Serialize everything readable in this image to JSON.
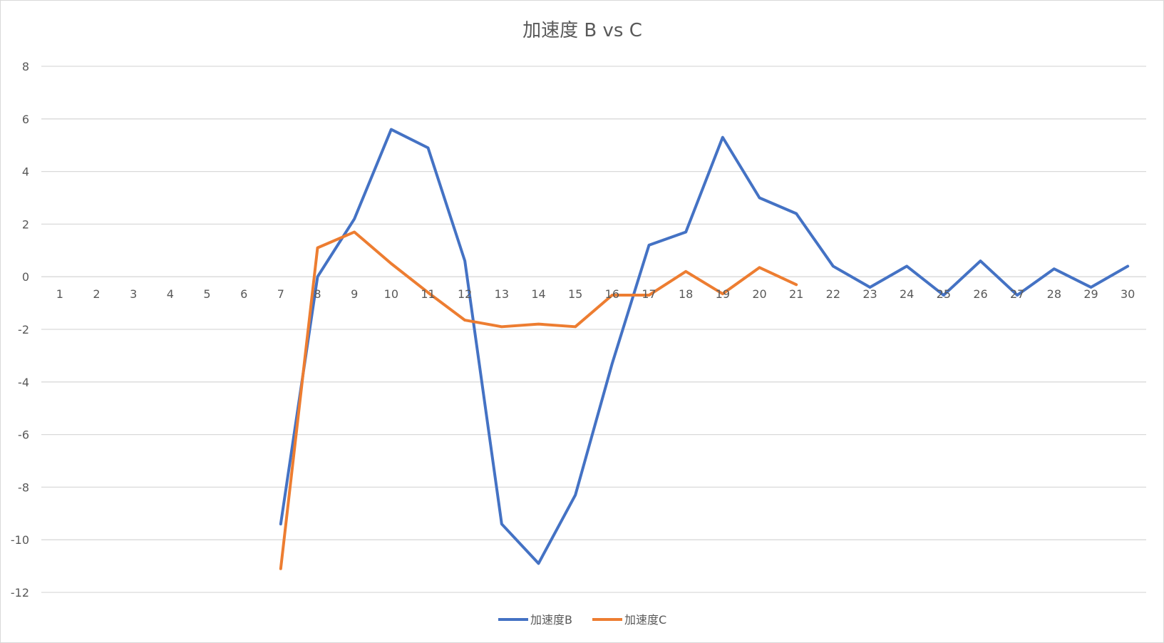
{
  "chart_data": {
    "type": "line",
    "title": "加速度 B vs C",
    "categories": [
      "1",
      "2",
      "3",
      "4",
      "5",
      "6",
      "7",
      "8",
      "9",
      "10",
      "11",
      "12",
      "13",
      "14",
      "15",
      "16",
      "17",
      "18",
      "19",
      "20",
      "21",
      "22",
      "23",
      "24",
      "25",
      "26",
      "27",
      "28",
      "29",
      "30"
    ],
    "series": [
      {
        "name": "加速度B",
        "color": "#4472C4",
        "values": [
          null,
          null,
          null,
          null,
          null,
          null,
          -9.4,
          0.0,
          2.2,
          5.6,
          4.9,
          0.6,
          -9.4,
          -10.9,
          -8.3,
          -3.3,
          1.2,
          1.7,
          5.3,
          3.0,
          2.4,
          0.4,
          -0.4,
          0.4,
          -0.7,
          0.6,
          -0.7,
          0.3,
          -0.4,
          0.4
        ]
      },
      {
        "name": "加速度C",
        "color": "#ED7D31",
        "values": [
          null,
          null,
          null,
          null,
          null,
          null,
          -11.1,
          1.1,
          1.7,
          0.5,
          -0.6,
          -1.65,
          -1.9,
          -1.8,
          -1.9,
          -0.7,
          -0.7,
          0.2,
          -0.65,
          0.35,
          -0.3,
          null,
          null,
          null,
          null,
          null,
          null,
          null,
          null,
          null
        ]
      }
    ],
    "ylim": [
      -12,
      8
    ],
    "yticks": [
      "8",
      "6",
      "4",
      "2",
      "0",
      "-2",
      "-4",
      "-6",
      "-8",
      "-10",
      "-12"
    ],
    "grid": true,
    "legend": "bottom",
    "xlabel": "",
    "ylabel": ""
  }
}
